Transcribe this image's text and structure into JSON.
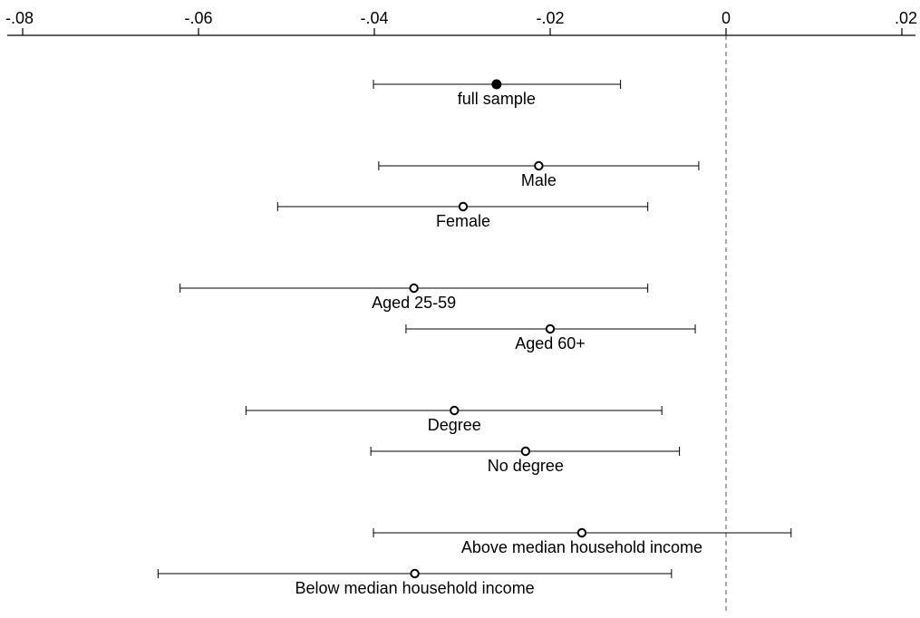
{
  "chart_data": {
    "type": "scatter",
    "subtype": "coefficient-plot-with-confidence-intervals",
    "title": "",
    "xlabel": "",
    "ylabel": "",
    "xlim": [
      -0.08,
      0.02
    ],
    "x_ticks": [
      -0.08,
      -0.06,
      -0.04,
      -0.02,
      0,
      0.02
    ],
    "x_tick_labels": [
      "-.08",
      "-.06",
      "-.04",
      "-.02",
      "0",
      ".02"
    ],
    "x_axis_position": "top",
    "reference_line": {
      "x": 0,
      "style": "dashed",
      "color": "#aaaaaa"
    },
    "grid": false,
    "legend": "none",
    "groups": [
      {
        "rows": [
          0
        ]
      },
      {
        "rows": [
          1,
          2
        ]
      },
      {
        "rows": [
          3,
          4
        ]
      },
      {
        "rows": [
          5,
          6
        ]
      },
      {
        "rows": [
          7,
          8
        ]
      }
    ],
    "estimates": [
      {
        "label": "full sample",
        "estimate": -0.0261,
        "ci_low": -0.0401,
        "ci_high": -0.012,
        "marker": "filled"
      },
      {
        "label": "Male",
        "estimate": -0.0213,
        "ci_low": -0.0395,
        "ci_high": -0.0031,
        "marker": "hollow"
      },
      {
        "label": "Female",
        "estimate": -0.0299,
        "ci_low": -0.051,
        "ci_high": -0.0089,
        "marker": "hollow"
      },
      {
        "label": "Aged 25-59",
        "estimate": -0.0355,
        "ci_low": -0.0621,
        "ci_high": -0.0089,
        "marker": "hollow"
      },
      {
        "label": "Aged 60+",
        "estimate": -0.02,
        "ci_low": -0.0364,
        "ci_high": -0.0035,
        "marker": "hollow"
      },
      {
        "label": "Degree",
        "estimate": -0.0309,
        "ci_low": -0.0546,
        "ci_high": -0.0073,
        "marker": "hollow"
      },
      {
        "label": "No degree",
        "estimate": -0.0228,
        "ci_low": -0.0404,
        "ci_high": -0.0053,
        "marker": "hollow"
      },
      {
        "label": "Above median household income",
        "estimate": -0.0164,
        "ci_low": -0.0401,
        "ci_high": 0.0074,
        "marker": "hollow"
      },
      {
        "label": "Below median household income",
        "estimate": -0.0354,
        "ci_low": -0.0646,
        "ci_high": -0.0062,
        "marker": "hollow"
      }
    ]
  }
}
